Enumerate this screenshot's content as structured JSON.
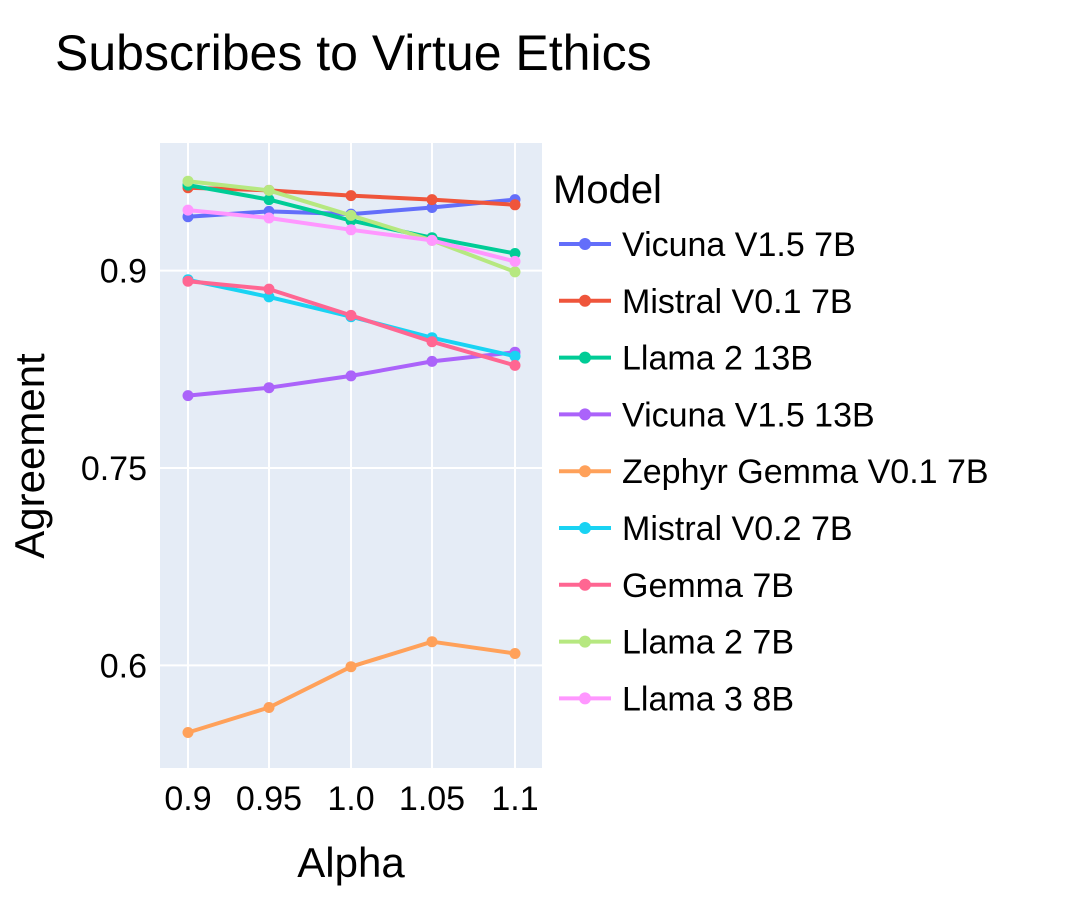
{
  "chart_data": {
    "type": "line",
    "title": "Subscribes to Virtue Ethics",
    "xlabel": "Alpha",
    "ylabel": "Agreement",
    "x": [
      0.9,
      0.95,
      1.0,
      1.05,
      1.1
    ],
    "x_tick_labels": [
      "0.9",
      "0.95",
      "1.0",
      "1.05",
      "1.1"
    ],
    "y_ticks": [
      0.6,
      0.75,
      0.9
    ],
    "y_tick_labels": [
      "0.6",
      "0.75",
      "0.9"
    ],
    "ylim": [
      0.522,
      0.997
    ],
    "grid": true,
    "background": "#e5ecf6",
    "legend": {
      "title": "Model",
      "placement": "right"
    },
    "series": [
      {
        "name": "Vicuna V1.5 7B",
        "color": "#636efa",
        "values": [
          0.941,
          0.945,
          0.943,
          0.948,
          0.954
        ]
      },
      {
        "name": "Mistral V0.1 7B",
        "color": "#ef553b",
        "values": [
          0.963,
          0.961,
          0.957,
          0.954,
          0.95
        ]
      },
      {
        "name": "Llama 2 13B",
        "color": "#00cc96",
        "values": [
          0.965,
          0.954,
          0.938,
          0.925,
          0.913
        ]
      },
      {
        "name": "Vicuna V1.5 13B",
        "color": "#ab63fa",
        "values": [
          0.805,
          0.811,
          0.82,
          0.831,
          0.838
        ]
      },
      {
        "name": "Zephyr Gemma V0.1 7B",
        "color": "#ffa15a",
        "values": [
          0.549,
          0.568,
          0.599,
          0.618,
          0.609
        ]
      },
      {
        "name": "Mistral V0.2 7B",
        "color": "#19d3f3",
        "values": [
          0.893,
          0.88,
          0.865,
          0.849,
          0.835
        ]
      },
      {
        "name": "Gemma 7B",
        "color": "#ff6692",
        "values": [
          0.892,
          0.886,
          0.866,
          0.846,
          0.828
        ]
      },
      {
        "name": "Llama 2 7B",
        "color": "#b6e880",
        "values": [
          0.968,
          0.961,
          0.942,
          0.923,
          0.899
        ]
      },
      {
        "name": "Llama 3 8B",
        "color": "#ff97ff",
        "values": [
          0.946,
          0.94,
          0.931,
          0.923,
          0.907
        ]
      }
    ]
  }
}
